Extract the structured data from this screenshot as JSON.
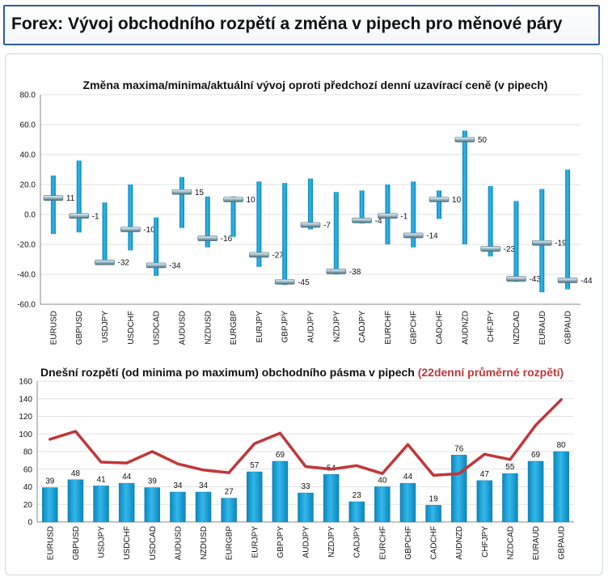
{
  "page": {
    "title": "Forex: Vývoj obchodního rozpětí a změna v pipech pro měnové páry"
  },
  "colors": {
    "bar": "#1aa3d9",
    "bar_dark": "#0f7fb0",
    "line": "#c0373a",
    "frame": "#2f5a9e"
  },
  "chart_data": [
    {
      "type": "range-marker",
      "title": "Změna maxima/minima/aktuální vývoj oproti předchozí denní uzavírací ceně (v pipech)",
      "categories": [
        "EURUSD",
        "GBPUSD",
        "USDJPY",
        "USDCHF",
        "USDCAD",
        "AUDUSD",
        "NZDUSD",
        "EURGBP",
        "EURJPY",
        "GBPJPY",
        "AUDJPY",
        "NZDJPY",
        "CADJPY",
        "EURCHF",
        "GBPCHF",
        "CADCHF",
        "AUDNZD",
        "CHFJPY",
        "NZDCAD",
        "EURAUD",
        "GBPAUD"
      ],
      "series": [
        {
          "values_low": [
            -13,
            -12,
            -33,
            -24,
            -41,
            -9,
            -22,
            -15,
            -35,
            -47,
            -10,
            -40,
            -6,
            -20,
            -22,
            -3,
            -20,
            -28,
            -45,
            -52,
            -50
          ]
        },
        {
          "values_high": [
            26,
            36,
            8,
            20,
            -2,
            25,
            12,
            12,
            22,
            21,
            24,
            15,
            16,
            20,
            22,
            16,
            56,
            19,
            9,
            17,
            30
          ]
        },
        {
          "values_current": [
            11,
            -1,
            -32,
            -10,
            -34,
            15,
            -16,
            10,
            -27,
            -45,
            -7,
            -38,
            -4,
            -1,
            -14,
            10,
            50,
            -23,
            -43,
            -19,
            -44
          ]
        }
      ],
      "labels": [
        "11",
        "-1",
        "-32",
        "-10",
        "-34",
        "15",
        "-16",
        "10",
        "-27",
        "-45",
        "-7",
        "-38",
        "-4",
        "-1",
        "-14",
        "10",
        "50",
        "-23",
        "-43",
        "-19",
        "-44"
      ],
      "ylim": [
        -60,
        80
      ],
      "yticks": [
        "80.0",
        "60.0",
        "40.0",
        "20.0",
        "0.0",
        "-20.0",
        "-40.0",
        "-60.0"
      ],
      "grid": true
    },
    {
      "type": "bar+line",
      "title": "Dnešní rozpětí (od minima po maximum) obchodního pásma v pipech",
      "title_highlight": "(22denní průměrné rozpětí)",
      "categories": [
        "EURUSD",
        "GBPUSD",
        "USDJPY",
        "USDCHF",
        "USDCAD",
        "AUDUSD",
        "NZDUSD",
        "EURGBP",
        "EURJPY",
        "GBPJPY",
        "AUDJPY",
        "NZDJPY",
        "CADJPY",
        "EURCHF",
        "GBPCHF",
        "CADCHF",
        "AUDNZD",
        "CHFJPY",
        "NZDCAD",
        "EURAUD",
        "GBPAUD"
      ],
      "series": [
        {
          "type": "bar",
          "values": [
            39,
            48,
            41,
            44,
            39,
            34,
            34,
            27,
            57,
            69,
            33,
            54,
            23,
            40,
            44,
            19,
            76,
            47,
            55,
            69,
            80
          ]
        },
        {
          "type": "line",
          "values": [
            94,
            103,
            68,
            67,
            80,
            66,
            59,
            56,
            89,
            101,
            63,
            60,
            64,
            55,
            88,
            53,
            55,
            77,
            71,
            110,
            139
          ]
        }
      ],
      "labels": [
        "39",
        "48",
        "41",
        "44",
        "39",
        "34",
        "34",
        "27",
        "57",
        "69",
        "33",
        "54",
        "23",
        "40",
        "44",
        "19",
        "76",
        "47",
        "55",
        "69",
        "80"
      ],
      "ylim": [
        0,
        160
      ],
      "yticks": [
        "160",
        "140",
        "120",
        "100",
        "80",
        "60",
        "40",
        "20",
        "0"
      ],
      "grid": true
    }
  ]
}
